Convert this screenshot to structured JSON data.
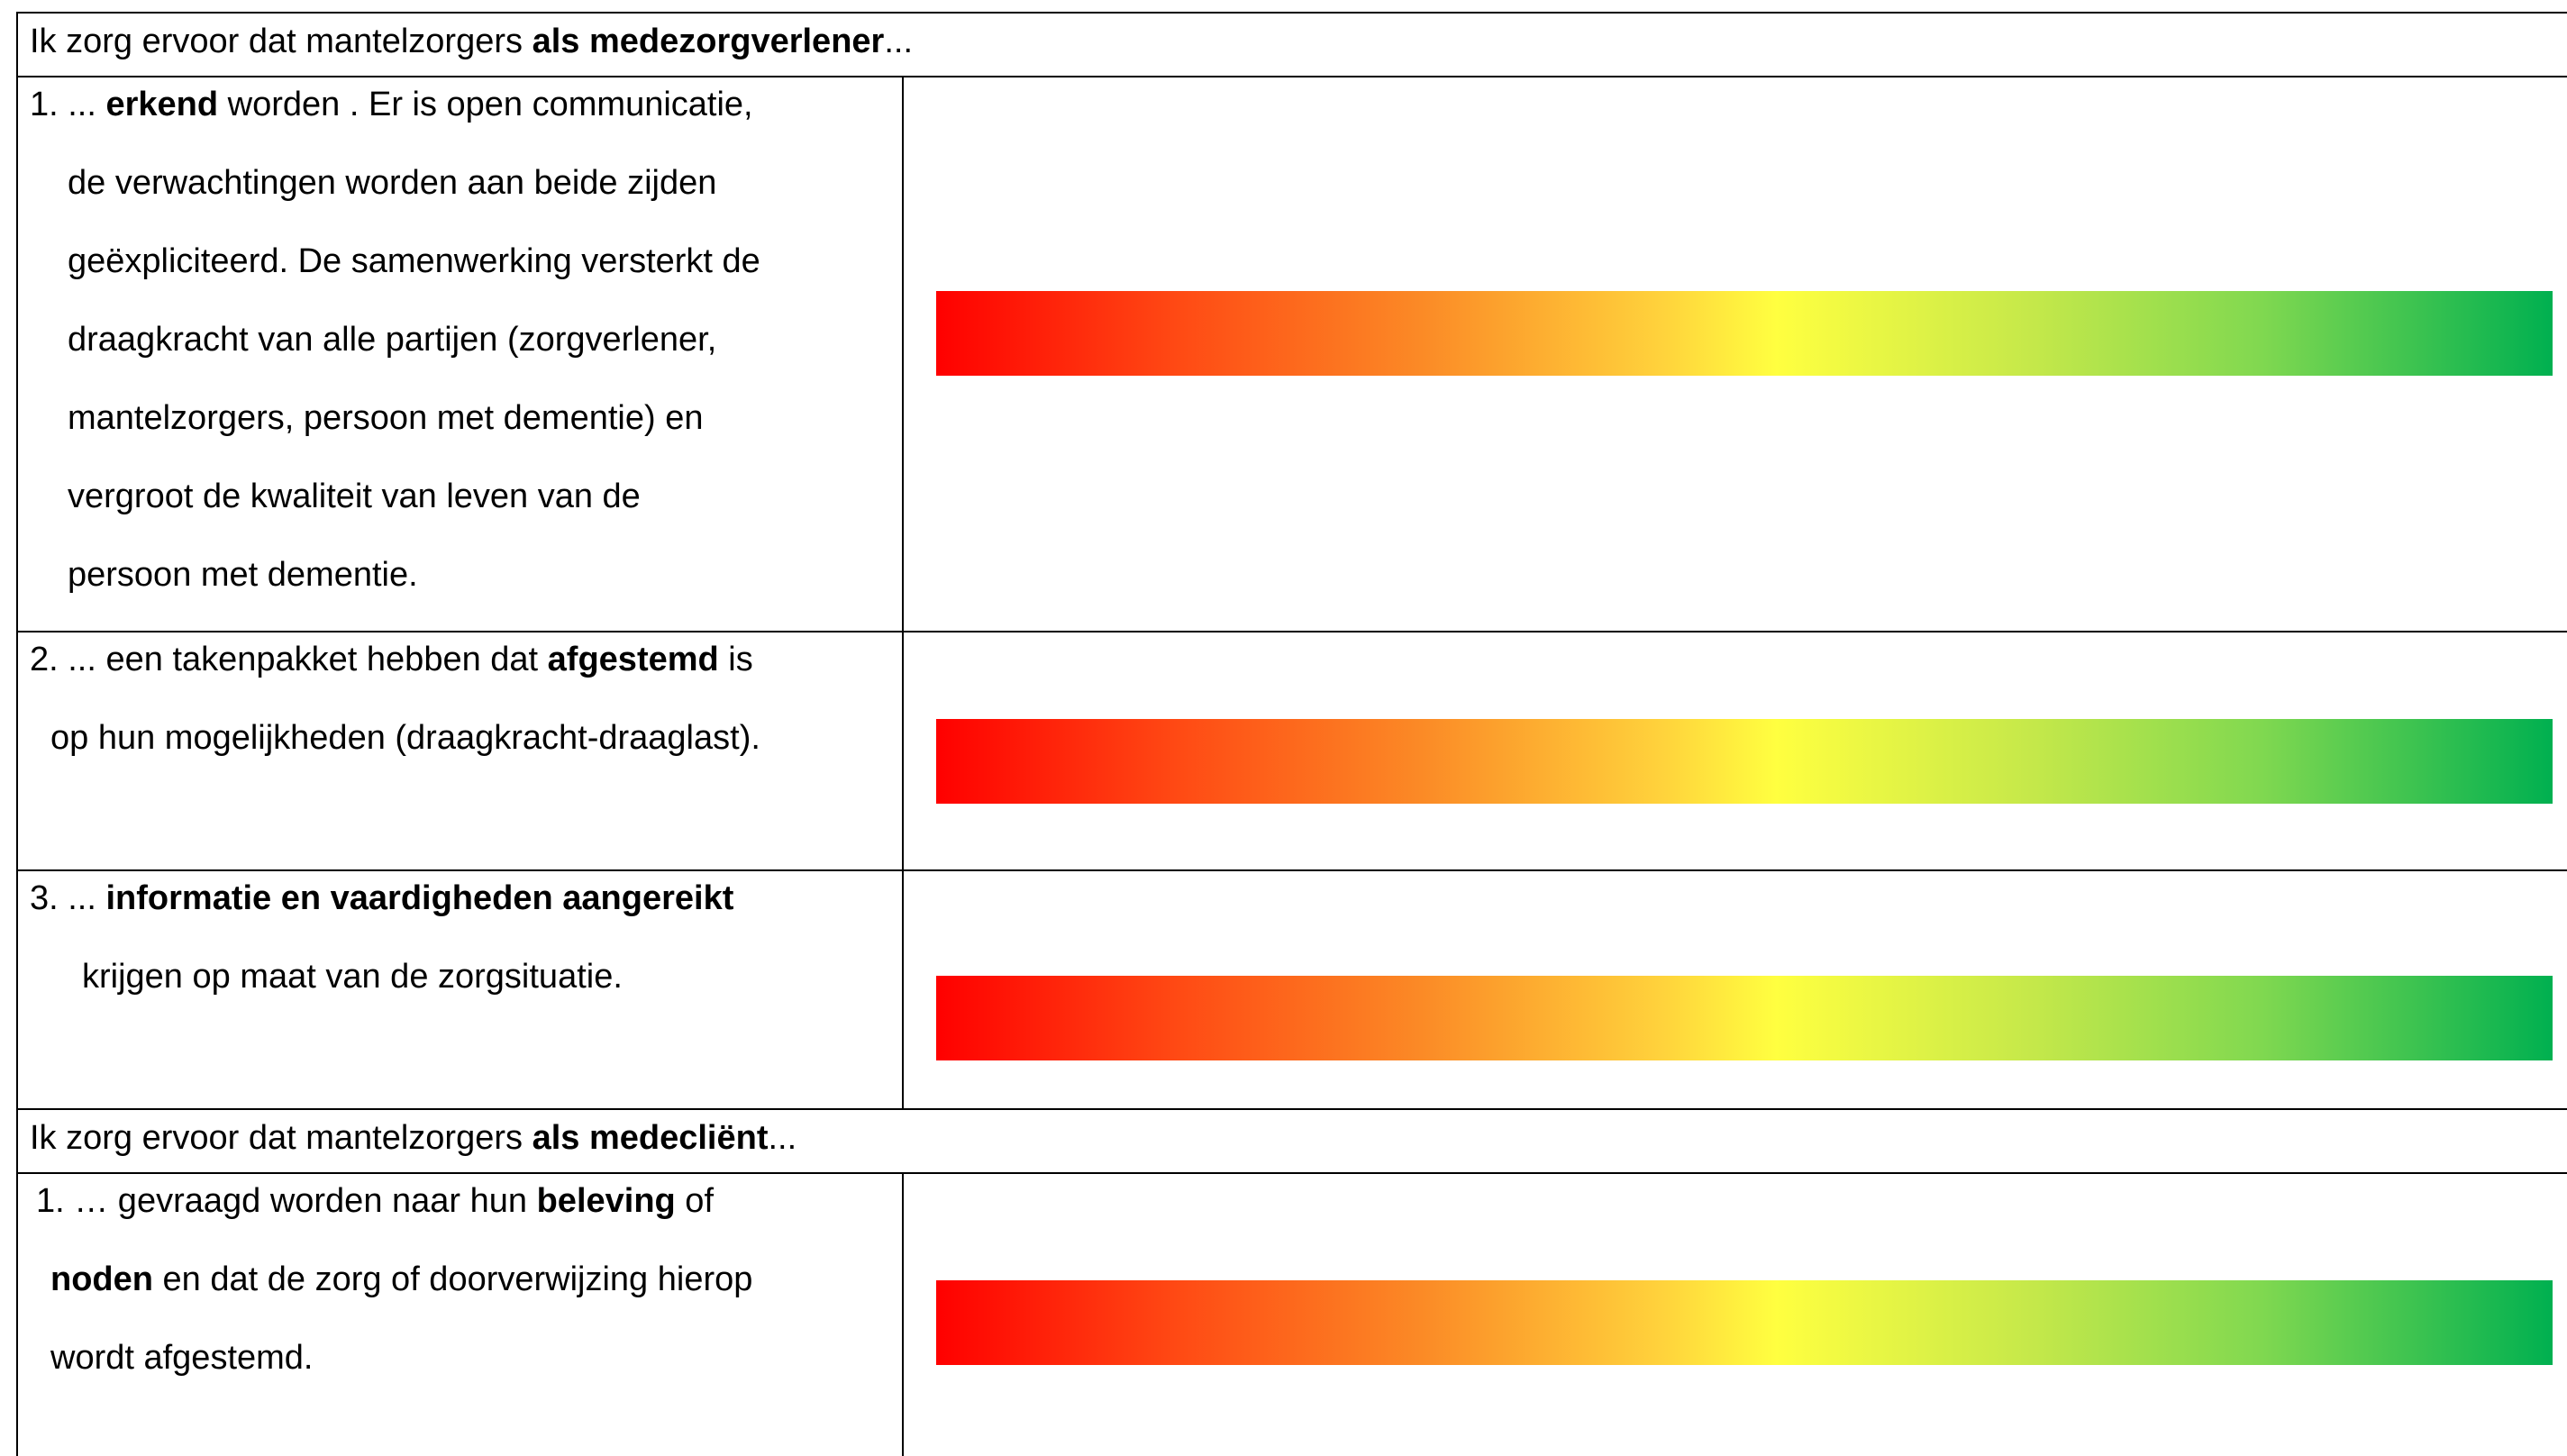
{
  "sections": [
    {
      "header": [
        {
          "text": "Ik zorg ervoor dat mantelzorgers "
        },
        {
          "text": "als medezorgverlener",
          "bold": true
        },
        {
          "text": "..."
        }
      ],
      "rows": [
        {
          "lines": [
            [
              {
                "text": "1. ... "
              },
              {
                "text": "erkend",
                "bold": true
              },
              {
                "text": " worden . Er is open communicatie,"
              }
            ],
            [
              {
                "text": "de verwachtingen worden aan beide zijden"
              }
            ],
            [
              {
                "text": "geëxpliciteerd. De samenwerking versterkt de"
              }
            ],
            [
              {
                "text": "draagkracht van alle partijen (zorgverlener,"
              }
            ],
            [
              {
                "text": "mantelzorgers, persoon met dementie) en"
              }
            ],
            [
              {
                "text": "vergroot de kwaliteit van leven van de"
              }
            ],
            [
              {
                "text": "persoon met dementie."
              }
            ]
          ]
        },
        {
          "lines": [
            [
              {
                "text": "2. ... een takenpakket hebben dat "
              },
              {
                "text": "afgestemd",
                "bold": true
              },
              {
                "text": " is"
              }
            ],
            [
              {
                "text": "op hun mogelijkheden (draagkracht-draaglast)."
              }
            ]
          ]
        },
        {
          "lines": [
            [
              {
                "text": "3. ... "
              },
              {
                "text": "informatie en vaardigheden aangereikt",
                "bold": true
              }
            ],
            [
              {
                "text": "krijgen op maat van de zorgsituatie."
              }
            ]
          ]
        }
      ]
    },
    {
      "header": [
        {
          "text": "Ik zorg ervoor dat mantelzorgers "
        },
        {
          "text": "als medecliënt",
          "bold": true
        },
        {
          "text": "..."
        }
      ],
      "rows": [
        {
          "lines": [
            [
              {
                "text": "1. … gevraagd worden naar hun "
              },
              {
                "text": "beleving",
                "bold": true
              },
              {
                "text": " of"
              }
            ],
            [
              {
                "text": "noden",
                "bold": true
              },
              {
                "text": " en dat de zorg of doorverwijzing hierop"
              }
            ],
            [
              {
                "text": "wordt afgestemd."
              }
            ]
          ]
        }
      ]
    }
  ]
}
